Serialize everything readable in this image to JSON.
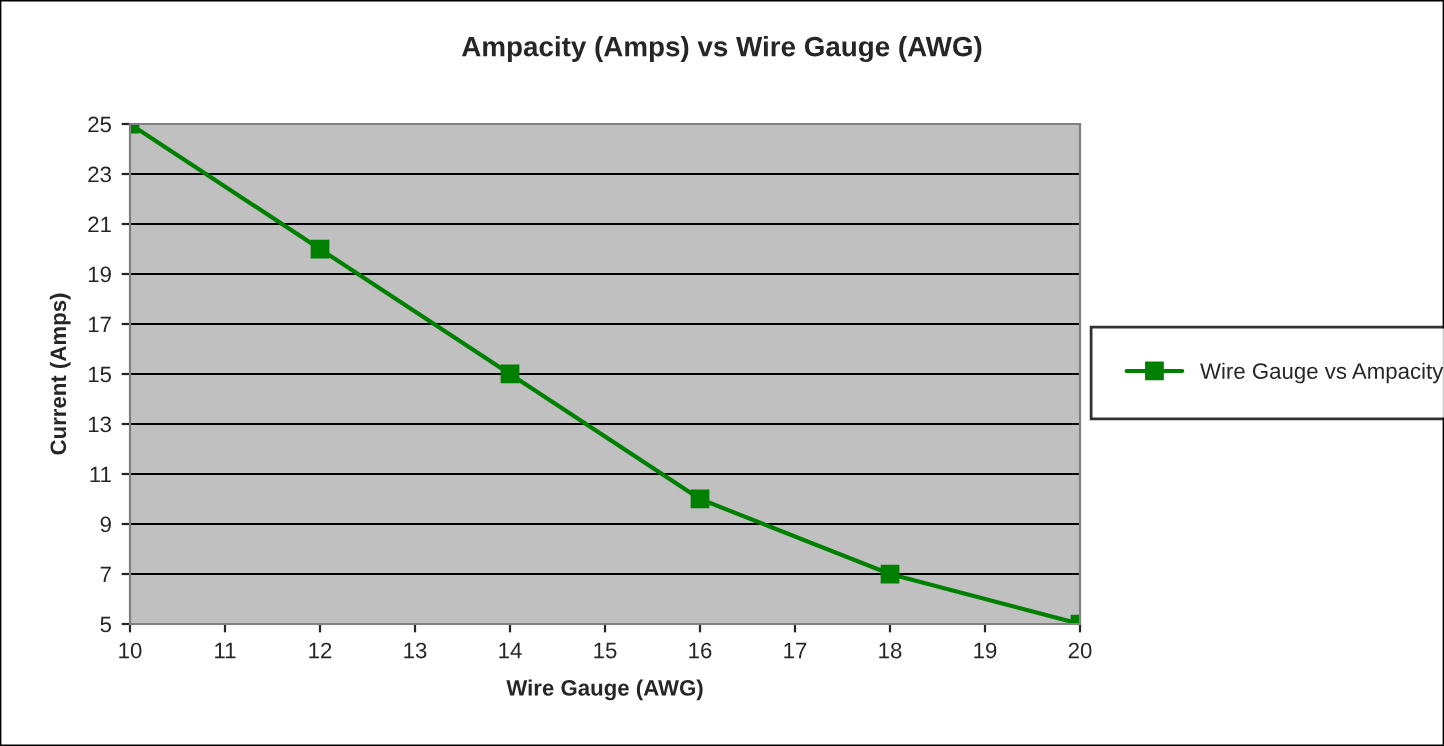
{
  "chart_data": {
    "type": "line",
    "title": "Ampacity (Amps) vs Wire Gauge (AWG)",
    "xlabel": "Wire Gauge (AWG)",
    "ylabel": "Current (Amps)",
    "x": [
      10,
      12,
      14,
      16,
      18,
      20
    ],
    "series": [
      {
        "name": "Wire Gauge vs Ampacity",
        "color": "#008000",
        "values": [
          25,
          20,
          15,
          10,
          7,
          5
        ]
      }
    ],
    "xlim": [
      10,
      20
    ],
    "xticks": [
      10,
      11,
      12,
      13,
      14,
      15,
      16,
      17,
      18,
      19,
      20
    ],
    "ylim": [
      5,
      25
    ],
    "yticks": [
      5,
      7,
      9,
      11,
      13,
      15,
      17,
      19,
      21,
      23,
      25
    ],
    "grid": "y",
    "legend": "right",
    "marker": "square",
    "line_style": "solid"
  }
}
